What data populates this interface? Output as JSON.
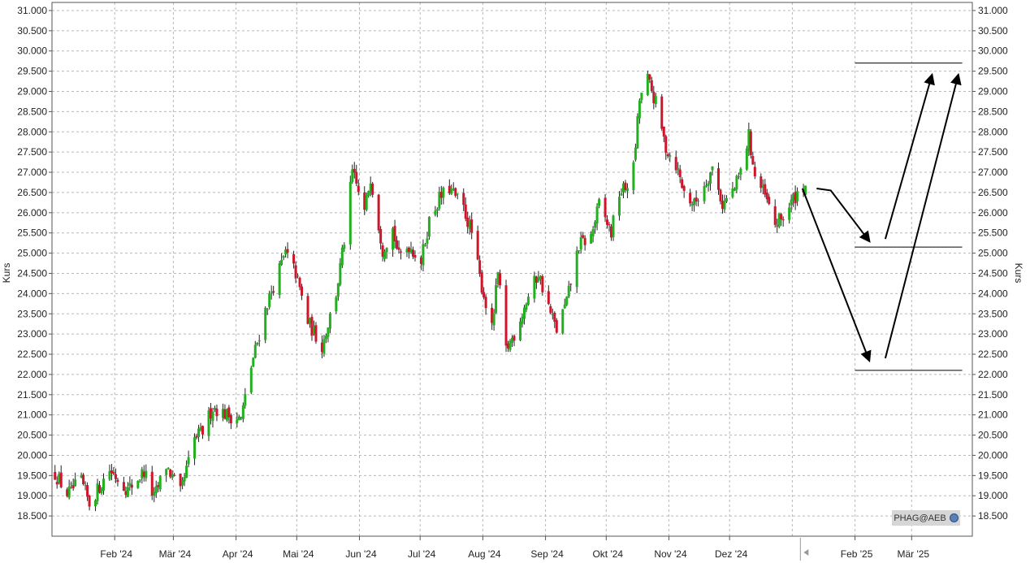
{
  "chart_data": {
    "type": "candlestick",
    "xlabel": "",
    "ylabel_left": "Kurs",
    "ylabel_right": "Kurs",
    "ylim": [
      18000,
      31200
    ],
    "y_ticks": [
      18500,
      19000,
      19500,
      20000,
      20500,
      21000,
      21500,
      22000,
      22500,
      23000,
      23500,
      24000,
      24500,
      25000,
      25500,
      26000,
      26500,
      27000,
      27500,
      28000,
      28500,
      29000,
      29500,
      30000,
      30500,
      31000
    ],
    "y_tick_labels": [
      "18.500",
      "19.000",
      "19.500",
      "20.000",
      "20.500",
      "21.000",
      "21.500",
      "22.000",
      "22.500",
      "23.000",
      "23.500",
      "24.000",
      "24.500",
      "25.000",
      "25.500",
      "26.000",
      "26.500",
      "27.000",
      "27.500",
      "28.000",
      "28.500",
      "29.000",
      "29.500",
      "30.000",
      "30.500",
      "31.000"
    ],
    "x_range": [
      "2024-01-01",
      "2025-03-31"
    ],
    "month_ticks": [
      {
        "date": "2024-02-01",
        "label": "Feb '24"
      },
      {
        "date": "2024-03-01",
        "label": "Mär '24"
      },
      {
        "date": "2024-04-01",
        "label": "Apr '24"
      },
      {
        "date": "2024-05-01",
        "label": "Mai '24"
      },
      {
        "date": "2024-06-01",
        "label": "Jun '24"
      },
      {
        "date": "2024-07-01",
        "label": "Jul '24"
      },
      {
        "date": "2024-08-01",
        "label": "Aug '24"
      },
      {
        "date": "2024-09-01",
        "label": "Sep '24"
      },
      {
        "date": "2024-10-01",
        "label": "Okt '24"
      },
      {
        "date": "2024-11-01",
        "label": "Nov '24"
      },
      {
        "date": "2024-12-01",
        "label": "Dez '24"
      },
      {
        "date": "2025-02-01",
        "label": "Feb '25"
      },
      {
        "date": "2025-03-01",
        "label": "Mär '25"
      }
    ],
    "grid": true,
    "colors": {
      "up": "#22b01e",
      "down": "#d0142a",
      "wick": "#222222",
      "grid": "#b8b8b8",
      "annotation": "#000000"
    },
    "anchors": [
      {
        "date": "2024-01-02",
        "value": 19550
      },
      {
        "date": "2024-01-08",
        "value": 19050
      },
      {
        "date": "2024-01-15",
        "value": 19350
      },
      {
        "date": "2024-01-19",
        "value": 18800
      },
      {
        "date": "2024-01-29",
        "value": 19650
      },
      {
        "date": "2024-02-07",
        "value": 19150
      },
      {
        "date": "2024-02-15",
        "value": 19600
      },
      {
        "date": "2024-02-20",
        "value": 18950
      },
      {
        "date": "2024-02-26",
        "value": 19750
      },
      {
        "date": "2024-03-04",
        "value": 19050
      },
      {
        "date": "2024-03-11",
        "value": 20400
      },
      {
        "date": "2024-03-15",
        "value": 20600
      },
      {
        "date": "2024-03-20",
        "value": 21200
      },
      {
        "date": "2024-03-27",
        "value": 21000
      },
      {
        "date": "2024-04-03",
        "value": 20900
      },
      {
        "date": "2024-04-08",
        "value": 22200
      },
      {
        "date": "2024-04-15",
        "value": 23600
      },
      {
        "date": "2024-04-19",
        "value": 24200
      },
      {
        "date": "2024-04-25",
        "value": 25000
      },
      {
        "date": "2024-04-30",
        "value": 24500
      },
      {
        "date": "2024-05-06",
        "value": 23300
      },
      {
        "date": "2024-05-13",
        "value": 22700
      },
      {
        "date": "2024-05-20",
        "value": 24000
      },
      {
        "date": "2024-05-24",
        "value": 25300
      },
      {
        "date": "2024-05-28",
        "value": 27000
      },
      {
        "date": "2024-06-03",
        "value": 26000
      },
      {
        "date": "2024-06-06",
        "value": 26900
      },
      {
        "date": "2024-06-12",
        "value": 25100
      },
      {
        "date": "2024-06-17",
        "value": 25600
      },
      {
        "date": "2024-06-20",
        "value": 24900
      },
      {
        "date": "2024-06-25",
        "value": 25200
      },
      {
        "date": "2024-07-01",
        "value": 24800
      },
      {
        "date": "2024-07-05",
        "value": 25800
      },
      {
        "date": "2024-07-10",
        "value": 26350
      },
      {
        "date": "2024-07-15",
        "value": 26600
      },
      {
        "date": "2024-07-22",
        "value": 26100
      },
      {
        "date": "2024-07-26",
        "value": 25500
      },
      {
        "date": "2024-07-30",
        "value": 24400
      },
      {
        "date": "2024-08-05",
        "value": 23100
      },
      {
        "date": "2024-08-08",
        "value": 24500
      },
      {
        "date": "2024-08-12",
        "value": 22600
      },
      {
        "date": "2024-08-16",
        "value": 23000
      },
      {
        "date": "2024-08-22",
        "value": 23800
      },
      {
        "date": "2024-08-28",
        "value": 24500
      },
      {
        "date": "2024-09-03",
        "value": 23500
      },
      {
        "date": "2024-09-06",
        "value": 23100
      },
      {
        "date": "2024-09-11",
        "value": 23800
      },
      {
        "date": "2024-09-17",
        "value": 25200
      },
      {
        "date": "2024-09-23",
        "value": 25400
      },
      {
        "date": "2024-09-27",
        "value": 26200
      },
      {
        "date": "2024-10-03",
        "value": 25500
      },
      {
        "date": "2024-10-07",
        "value": 26500
      },
      {
        "date": "2024-10-10",
        "value": 26600
      },
      {
        "date": "2024-10-14",
        "value": 27100
      },
      {
        "date": "2024-10-17",
        "value": 28800
      },
      {
        "date": "2024-10-21",
        "value": 29300
      },
      {
        "date": "2024-10-25",
        "value": 28700
      },
      {
        "date": "2024-10-30",
        "value": 27600
      },
      {
        "date": "2024-11-04",
        "value": 27200
      },
      {
        "date": "2024-11-08",
        "value": 26500
      },
      {
        "date": "2024-11-13",
        "value": 26200
      },
      {
        "date": "2024-11-18",
        "value": 26700
      },
      {
        "date": "2024-11-22",
        "value": 27100
      },
      {
        "date": "2024-11-27",
        "value": 26200
      },
      {
        "date": "2024-12-03",
        "value": 26600
      },
      {
        "date": "2024-12-06",
        "value": 27000
      },
      {
        "date": "2024-12-10",
        "value": 27900
      },
      {
        "date": "2024-12-13",
        "value": 26900
      },
      {
        "date": "2024-12-18",
        "value": 26400
      },
      {
        "date": "2024-12-23",
        "value": 25700
      },
      {
        "date": "2024-12-27",
        "value": 25900
      },
      {
        "date": "2025-01-03",
        "value": 26500
      },
      {
        "date": "2025-01-07",
        "value": 26700
      }
    ],
    "annotations": {
      "hlines": [
        {
          "value": 29700,
          "from": "2025-02-01",
          "to": "2025-03-26"
        },
        {
          "value": 25150,
          "from": "2025-02-01",
          "to": "2025-03-26"
        },
        {
          "value": 22100,
          "from": "2025-02-01",
          "to": "2025-03-26"
        }
      ],
      "arrows": [
        {
          "from": [
            "2025-01-13",
            26600
          ],
          "to": [
            "2025-02-08",
            25300
          ],
          "path": [
            [
              "2025-01-20",
              26550
            ]
          ]
        },
        {
          "from": [
            "2025-02-16",
            25350
          ],
          "to": [
            "2025-03-11",
            29400
          ]
        },
        {
          "from": [
            "2025-01-06",
            26600
          ],
          "to": [
            "2025-02-08",
            22350
          ]
        },
        {
          "from": [
            "2025-02-16",
            22400
          ],
          "to": [
            "2025-03-24",
            29400
          ]
        }
      ]
    }
  },
  "watermark": {
    "label": "PHAG@AEB",
    "icon": "globe-icon"
  }
}
